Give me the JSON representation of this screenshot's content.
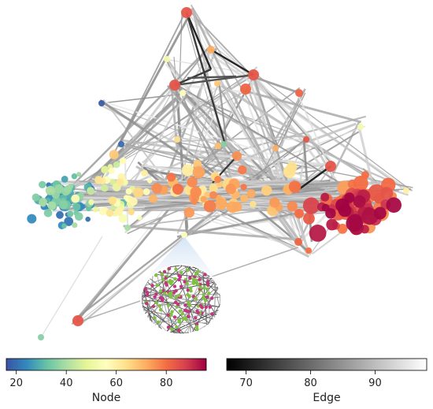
{
  "colorbars": {
    "node": {
      "label": "Node",
      "range": [
        16,
        96
      ],
      "ticks": [
        "20",
        "40",
        "60",
        "80"
      ],
      "tick_values": [
        20,
        40,
        60,
        80
      ],
      "colormap": "Spectral_r",
      "stops": [
        "#3b53a4",
        "#3288bd",
        "#66c2a5",
        "#abdda4",
        "#e6f598",
        "#ffffbf",
        "#fee08b",
        "#fdae61",
        "#f46d43",
        "#d53e4f",
        "#9e0142"
      ]
    },
    "edge": {
      "label": "Edge",
      "range": [
        67,
        98
      ],
      "ticks": [
        "70",
        "80",
        "90"
      ],
      "tick_values": [
        70,
        80,
        90
      ],
      "colormap": "Greys_r",
      "stops": [
        "#000000",
        "#ffffff"
      ]
    }
  },
  "colors": {
    "inset_cone": "#b9d3ee",
    "inset_node_green": "#7fc142",
    "inset_node_magenta": "#c0377f"
  }
}
